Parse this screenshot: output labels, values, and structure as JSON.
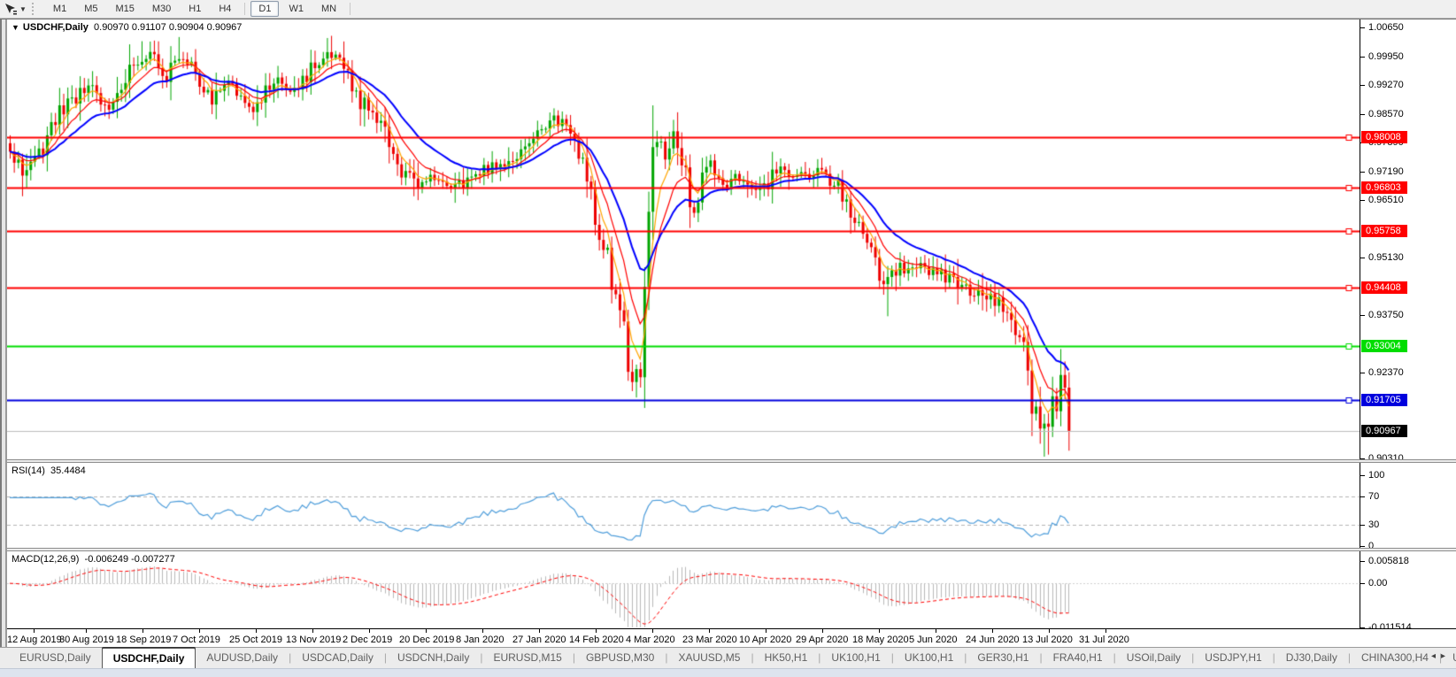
{
  "toolbar": {
    "tool_icon": "cursor-crosshair",
    "timeframes": [
      "M1",
      "M5",
      "M15",
      "M30",
      "H1",
      "H4",
      "D1",
      "W1",
      "MN"
    ],
    "active_timeframe": "D1"
  },
  "main_chart": {
    "title_symbol": "USDCHF,Daily",
    "title_ohlc": "0.90970 0.91107 0.90904 0.90967",
    "axis_ticks": [
      {
        "v": 1.0065,
        "label": "1.00650"
      },
      {
        "v": 0.9995,
        "label": "0.99950"
      },
      {
        "v": 0.9927,
        "label": "0.99270"
      },
      {
        "v": 0.9857,
        "label": "0.98570"
      },
      {
        "v": 0.9789,
        "label": "0.97890"
      },
      {
        "v": 0.9719,
        "label": "0.97190"
      },
      {
        "v": 0.9651,
        "label": "0.96510"
      },
      {
        "v": 0.9513,
        "label": "0.95130"
      },
      {
        "v": 0.9375,
        "label": "0.93750"
      },
      {
        "v": 0.9237,
        "label": "0.92370"
      },
      {
        "v": 0.9031,
        "label": "0.90310"
      }
    ],
    "levels": [
      {
        "price": 0.98008,
        "label": "0.98008",
        "color": "#ff0000"
      },
      {
        "price": 0.96803,
        "label": "0.96803",
        "color": "#ff0000"
      },
      {
        "price": 0.95758,
        "label": "0.95758",
        "color": "#ff0000"
      },
      {
        "price": 0.94408,
        "label": "0.94408",
        "color": "#ff0000"
      },
      {
        "price": 0.93004,
        "label": "0.93004",
        "color": "#00dd00"
      },
      {
        "price": 0.91705,
        "label": "0.91705",
        "color": "#0000dd"
      }
    ],
    "current_price": {
      "price": 0.90967,
      "label": "0.90967",
      "line_color": "#bdbdbd",
      "bg": "#000000"
    }
  },
  "rsi_panel": {
    "name_label": "RSI(14)",
    "value": "35.4484",
    "ticks": [
      {
        "v": 100,
        "label": "100"
      },
      {
        "v": 70,
        "label": "70"
      },
      {
        "v": 30,
        "label": "30"
      },
      {
        "v": 0,
        "label": "0"
      }
    ],
    "guide_levels": [
      70,
      30
    ],
    "line_color": "#4f9edb"
  },
  "macd_panel": {
    "name_label": "MACD(12,26,9)",
    "values": "-0.006249 -0.007277",
    "ticks": [
      {
        "v": 0.005818,
        "label": "0.005818"
      },
      {
        "v": 0,
        "label": "0.00"
      },
      {
        "v": -0.011514,
        "label": "-0.011514"
      }
    ],
    "hist_color": "#b9b9b9",
    "signal_color": "#ff0000"
  },
  "date_axis": [
    "12 Aug 2019",
    "30 Aug 2019",
    "18 Sep 2019",
    "7 Oct 2019",
    "25 Oct 2019",
    "13 Nov 2019",
    "2 Dec 2019",
    "20 Dec 2019",
    "8 Jan 2020",
    "27 Jan 2020",
    "14 Feb 2020",
    "4 Mar 2020",
    "23 Mar 2020",
    "10 Apr 2020",
    "29 Apr 2020",
    "18 May 2020",
    "5 Jun 2020",
    "24 Jun 2020",
    "13 Jul 2020",
    "31 Jul 2020"
  ],
  "tabs": {
    "items": [
      "EURUSD,Daily",
      "USDCHF,Daily",
      "AUDUSD,Daily",
      "USDCAD,Daily",
      "USDCNH,Daily",
      "EURUSD,M15",
      "GBPUSD,M30",
      "XAUUSD,M5",
      "HK50,H1",
      "UK100,H1",
      "UK100,H1",
      "GER30,H1",
      "FRA40,H1",
      "USOil,Daily",
      "USDJPY,H1",
      "DJ30,Daily",
      "CHINA300,H4",
      "USOil,D"
    ],
    "active_index": 1
  },
  "chart_data": {
    "type": "candlestick",
    "symbol": "USDCHF",
    "timeframe": "Daily",
    "count": 258,
    "ylim": [
      0.90287,
      1.00842
    ],
    "up_color": "#00a500",
    "down_color": "#ee0000",
    "close_anchors": [
      [
        0,
        0.976
      ],
      [
        3,
        0.9718
      ],
      [
        6,
        0.9745
      ],
      [
        9,
        0.98
      ],
      [
        13,
        0.988
      ],
      [
        17,
        0.9905
      ],
      [
        20,
        0.9918
      ],
      [
        24,
        0.9862
      ],
      [
        28,
        0.995
      ],
      [
        32,
        1.0005
      ],
      [
        35,
        0.999
      ],
      [
        38,
        0.9955
      ],
      [
        41,
        1.0
      ],
      [
        44,
        0.9985
      ],
      [
        49,
        0.989
      ],
      [
        54,
        0.993
      ],
      [
        59,
        0.988
      ],
      [
        65,
        0.994
      ],
      [
        69,
        0.992
      ],
      [
        74,
        0.9975
      ],
      [
        78,
        0.9998
      ],
      [
        82,
        0.994
      ],
      [
        86,
        0.987
      ],
      [
        90,
        0.9835
      ],
      [
        94,
        0.9724
      ],
      [
        98,
        0.969
      ],
      [
        103,
        0.9705
      ],
      [
        107,
        0.968
      ],
      [
        110,
        0.9692
      ],
      [
        115,
        0.9724
      ],
      [
        121,
        0.9745
      ],
      [
        127,
        0.98
      ],
      [
        131,
        0.9845
      ],
      [
        135,
        0.983
      ],
      [
        138,
        0.976
      ],
      [
        142,
        0.9627
      ],
      [
        145,
        0.95
      ],
      [
        147,
        0.941
      ],
      [
        149,
        0.933
      ],
      [
        151,
        0.924
      ],
      [
        152,
        0.9195
      ],
      [
        153,
        0.932
      ],
      [
        154,
        0.947
      ],
      [
        155,
        0.966
      ],
      [
        156,
        0.986
      ],
      [
        157,
        0.979
      ],
      [
        159,
        0.9735
      ],
      [
        161,
        0.979
      ],
      [
        164,
        0.97
      ],
      [
        166,
        0.963
      ],
      [
        168,
        0.972
      ],
      [
        170,
        0.9745
      ],
      [
        173,
        0.968
      ],
      [
        177,
        0.9712
      ],
      [
        180,
        0.969
      ],
      [
        182,
        0.967
      ],
      [
        186,
        0.9722
      ],
      [
        191,
        0.9702
      ],
      [
        196,
        0.9724
      ],
      [
        200,
        0.969
      ],
      [
        204,
        0.9626
      ],
      [
        208,
        0.9565
      ],
      [
        211,
        0.948
      ],
      [
        213,
        0.9452
      ],
      [
        216,
        0.9485
      ],
      [
        220,
        0.9496
      ],
      [
        226,
        0.9473
      ],
      [
        230,
        0.945
      ],
      [
        234,
        0.943
      ],
      [
        239,
        0.9408
      ],
      [
        243,
        0.9376
      ],
      [
        246,
        0.9278
      ],
      [
        248,
        0.918
      ],
      [
        250,
        0.911
      ],
      [
        252,
        0.9085
      ],
      [
        253,
        0.913
      ],
      [
        254,
        0.918
      ],
      [
        255,
        0.9205
      ],
      [
        256,
        0.915
      ],
      [
        257,
        0.9097
      ]
    ],
    "wick_spikes": [
      {
        "i": 3,
        "low": 0.966
      },
      {
        "i": 32,
        "high": 1.0032
      },
      {
        "i": 41,
        "high": 1.0042
      },
      {
        "i": 78,
        "high": 1.0045
      },
      {
        "i": 98,
        "low": 0.966
      },
      {
        "i": 131,
        "high": 0.9861
      },
      {
        "i": 152,
        "low": 0.9177
      },
      {
        "i": 156,
        "high": 0.9878
      },
      {
        "i": 213,
        "low": 0.9372
      },
      {
        "i": 251,
        "low": 0.9035
      },
      {
        "i": 252,
        "low": 0.904
      }
    ],
    "ma_lines": [
      {
        "name": "MA fast",
        "period": 5,
        "color": "#ffa500",
        "width": 1.2
      },
      {
        "name": "MA medium",
        "period": 10,
        "color": "#ff0000",
        "width": 1.2
      },
      {
        "name": "MA slow",
        "period": 21,
        "color": "#0000ff",
        "width": 2
      }
    ],
    "indicators": [
      {
        "name": "RSI",
        "period": 14,
        "last_value": 35.4484,
        "range": [
          0,
          100
        ]
      },
      {
        "name": "MACD",
        "fast": 12,
        "slow": 26,
        "signal": 9,
        "main": -0.006249,
        "signal_value": -0.007277,
        "range": [
          -0.011514,
          0.005818
        ]
      }
    ]
  }
}
